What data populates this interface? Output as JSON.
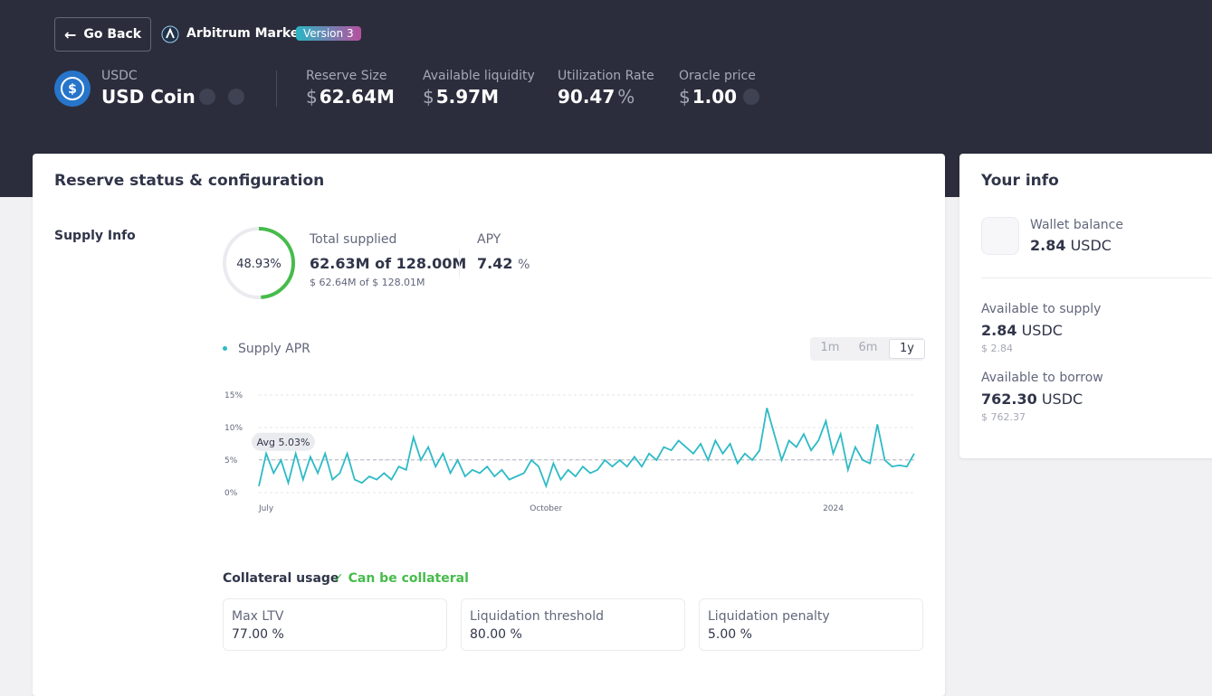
{
  "header": {
    "back": "Go Back",
    "market": "Arbitrum Market",
    "version": "Version 3",
    "symbol": "USDC",
    "name": "USD Coin",
    "stats": [
      {
        "label": "Reserve Size",
        "prefix": "$",
        "value": "62.64M"
      },
      {
        "label": "Available liquidity",
        "prefix": "$",
        "value": "5.97M"
      },
      {
        "label": "Utilization Rate",
        "value": "90.47",
        "suffix": "%"
      },
      {
        "label": "Oracle price",
        "prefix": "$",
        "value": "1.00"
      }
    ]
  },
  "reserve": {
    "title": "Reserve status & configuration",
    "supply_label": "Supply Info",
    "supplied_ratio": {
      "value": 48.93,
      "label": "48.93%"
    },
    "total_supplied_label": "Total supplied",
    "total_supplied": "62.63M of 128.00M",
    "total_supplied_usd": "$ 62.64M of $ 128.01M",
    "apy_label": "APY",
    "apy": "7.42",
    "apy_unit": "%",
    "ranges": [
      "1m",
      "6m",
      "1y"
    ],
    "collateral_label": "Collateral usage",
    "collateral_status": "Can be collateral",
    "params": [
      {
        "label": "Max LTV",
        "value": "77.00 %"
      },
      {
        "label": "Liquidation threshold",
        "value": "80.00 %"
      },
      {
        "label": "Liquidation penalty",
        "value": "5.00 %"
      }
    ]
  },
  "your_info": {
    "title": "Your info",
    "wallet_label": "Wallet balance",
    "wallet_value": "2.84",
    "wallet_unit": "USDC",
    "supply_label": "Available to supply",
    "supply_value": "2.84",
    "supply_unit": "USDC",
    "supply_usd": "$ 2.84",
    "borrow_label": "Available to borrow",
    "borrow_value": "762.30",
    "borrow_unit": "USDC",
    "borrow_usd": "$ 762.37"
  },
  "chart_data": {
    "type": "line",
    "categories": [
      null,
      "July",
      null,
      null,
      null,
      null,
      null,
      null,
      null,
      null,
      null,
      null,
      null,
      null,
      null,
      null,
      null,
      null,
      null,
      null,
      null,
      null,
      null,
      null,
      null,
      null,
      null,
      null,
      null,
      null,
      null,
      null,
      null,
      null,
      null,
      null,
      null,
      null,
      null,
      "October",
      null,
      null,
      null,
      null,
      null,
      null,
      null,
      null,
      null,
      null,
      null,
      null,
      null,
      null,
      null,
      null,
      null,
      null,
      null,
      null,
      null,
      null,
      null,
      null,
      null,
      null,
      null,
      null,
      null,
      null,
      null,
      null,
      null,
      null,
      null,
      null,
      null,
      null,
      "2024",
      null,
      null,
      null,
      null,
      null,
      null,
      null,
      null,
      null,
      null,
      null
    ],
    "series": [
      {
        "name": "Supply APR",
        "color": "#2ebac6",
        "values": [
          1,
          6,
          3,
          5,
          1.5,
          6,
          2,
          5.5,
          3,
          6,
          2,
          3,
          6,
          2,
          1.5,
          2.5,
          2,
          3,
          2,
          4,
          3.5,
          8.5,
          5,
          7,
          4,
          6,
          3,
          5,
          2.5,
          3.5,
          3,
          4,
          2.5,
          3.5,
          2,
          2.5,
          3,
          5,
          4,
          1,
          4.5,
          2,
          3.5,
          2.5,
          4,
          3,
          3.5,
          5,
          4,
          5,
          4,
          5.5,
          4,
          6,
          5,
          7,
          6.5,
          8,
          7,
          6,
          7.5,
          5,
          8,
          6,
          7.5,
          4.5,
          6,
          5,
          6.5,
          13,
          9,
          5,
          8,
          7,
          9,
          6.5,
          8,
          11,
          6,
          9,
          3.5,
          7,
          5,
          4.5,
          10.5,
          5,
          4,
          4.2,
          4,
          6
        ]
      }
    ],
    "average": {
      "value": 5.03,
      "label": "Avg 5.03%"
    },
    "ylim": [
      0,
      15
    ],
    "yticks": [
      {
        "value": 0,
        "label": "0%"
      },
      {
        "value": 5,
        "label": "5%"
      },
      {
        "value": 10,
        "label": "10%"
      },
      {
        "value": 15,
        "label": "15%"
      }
    ],
    "grid": true
  }
}
